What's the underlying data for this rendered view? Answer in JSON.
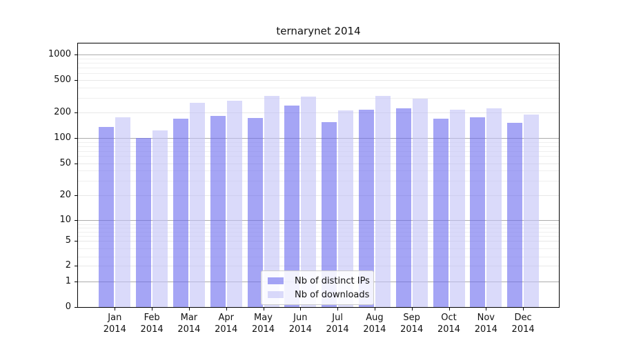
{
  "header": {
    "title": "ternarynet 2014"
  },
  "chart_data": {
    "type": "bar",
    "title": "ternarynet 2014",
    "xlabel": "",
    "ylabel": "",
    "yscale": "log (symlog-style, linear segment between 0 and 1)",
    "ylim": [
      0,
      1370
    ],
    "grid": true,
    "legend_position": "lower center",
    "y_ticks": [
      "1000",
      "500",
      "200",
      "100",
      "50",
      "20",
      "10",
      "5",
      "2",
      "1",
      "0"
    ],
    "categories": [
      "Jan 2014",
      "Feb 2014",
      "Mar 2014",
      "Apr 2014",
      "May 2014",
      "Jun 2014",
      "Jul 2014",
      "Aug 2014",
      "Sep 2014",
      "Oct 2014",
      "Nov 2014",
      "Dec 2014"
    ],
    "series": [
      {
        "name": "Nb of distinct IPs",
        "color": "#6969ee",
        "opacity": 0.6,
        "values": [
          136,
          100,
          172,
          184,
          174,
          247,
          156,
          218,
          228,
          172,
          178,
          151
        ]
      },
      {
        "name": "Nb of downloads",
        "color": "#c1c1f7",
        "opacity": 0.6,
        "values": [
          178,
          124,
          264,
          281,
          324,
          313,
          217,
          324,
          300,
          221,
          228,
          191
        ]
      }
    ]
  }
}
